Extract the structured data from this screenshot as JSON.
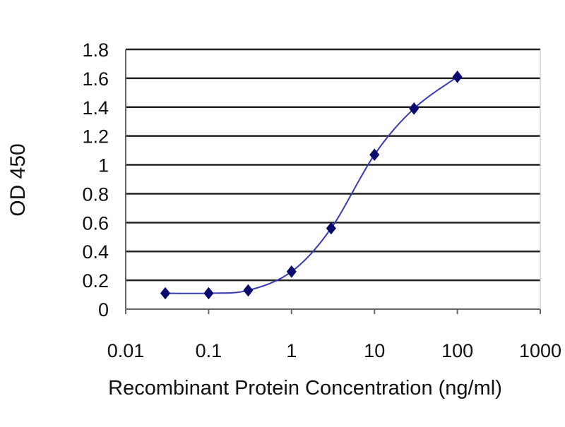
{
  "chart_data": {
    "type": "line",
    "ylabel": "OD 450",
    "xlabel": "Recombinant Protein Concentration (ng/ml)",
    "x_scale": "log",
    "xlim": [
      0.01,
      1000
    ],
    "ylim": [
      0,
      1.8
    ],
    "x_ticks": [
      "0.01",
      "0.1",
      "1",
      "10",
      "100",
      "1000"
    ],
    "y_ticks": [
      "0",
      "0.2",
      "0.4",
      "0.6",
      "0.8",
      "1",
      "1.2",
      "1.4",
      "1.6",
      "1.8"
    ],
    "grid": "horizontal",
    "series": [
      {
        "x": [
          0.03,
          0.1,
          0.3,
          1,
          3,
          10,
          30,
          100
        ],
        "y": [
          0.11,
          0.11,
          0.13,
          0.26,
          0.56,
          1.07,
          1.39,
          1.61
        ]
      }
    ],
    "colors": {
      "line": "#3a3ab8",
      "marker": "#0a0a6e",
      "grid": "#222222",
      "axis": "#666666"
    }
  }
}
